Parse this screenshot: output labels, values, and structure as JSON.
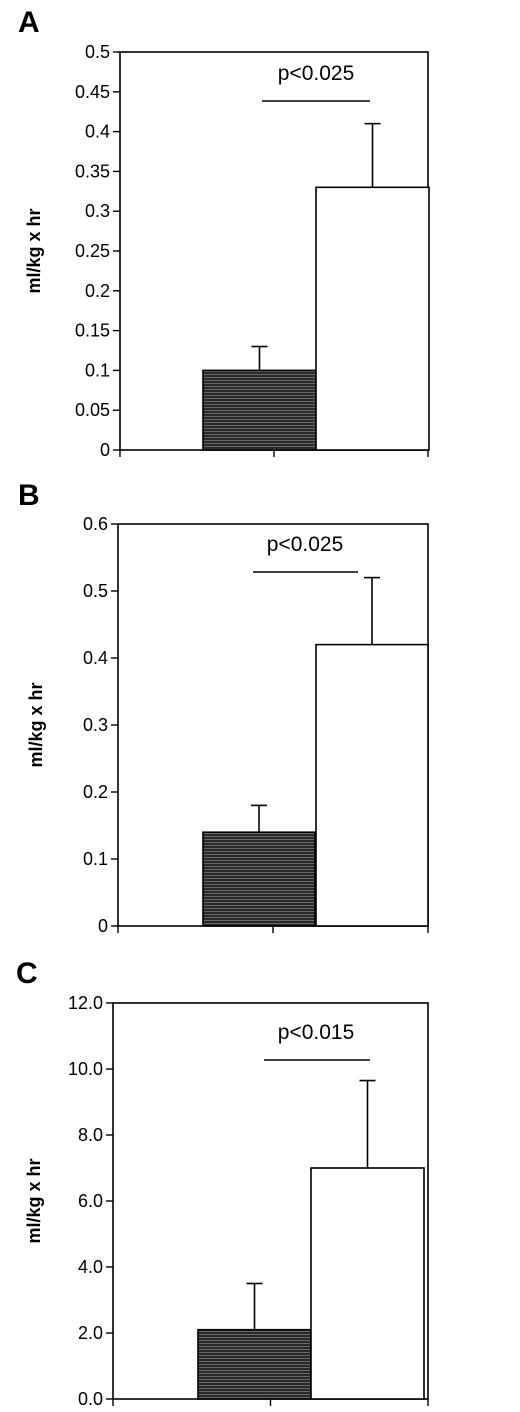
{
  "chart_data": [
    {
      "type": "bar",
      "panel_label": "A",
      "ylabel": "ml/kg x hr",
      "ylim": [
        0,
        0.5
      ],
      "yticks": [
        "0",
        "0.05",
        "0.1",
        "0.15",
        "0.2",
        "0.25",
        "0.3",
        "0.35",
        "0.4",
        "0.45",
        "0.5"
      ],
      "bars": [
        {
          "value": 0.1,
          "error": 0.03,
          "fill": "#222222"
        },
        {
          "value": 0.33,
          "error": 0.08,
          "fill": "#ffffff"
        }
      ],
      "annotation": "p<0.025"
    },
    {
      "type": "bar",
      "panel_label": "B",
      "ylabel": "ml/kg x hr",
      "ylim": [
        0,
        0.6
      ],
      "yticks": [
        "0",
        "0.1",
        "0.2",
        "0.3",
        "0.4",
        "0.5",
        "0.6"
      ],
      "bars": [
        {
          "value": 0.14,
          "error": 0.04,
          "fill": "#222222"
        },
        {
          "value": 0.42,
          "error": 0.1,
          "fill": "#ffffff"
        }
      ],
      "annotation": "p<0.025"
    },
    {
      "type": "bar",
      "panel_label": "C",
      "ylabel": "ml/kg x hr",
      "ylim": [
        0,
        12
      ],
      "yticks": [
        "0.0",
        "2.0",
        "4.0",
        "6.0",
        "8.0",
        "10.0",
        "12.0"
      ],
      "bars": [
        {
          "value": 2.1,
          "error": 1.4,
          "fill": "#222222"
        },
        {
          "value": 7.0,
          "error": 2.65,
          "fill": "#ffffff"
        }
      ],
      "annotation": "p<0.015"
    }
  ]
}
